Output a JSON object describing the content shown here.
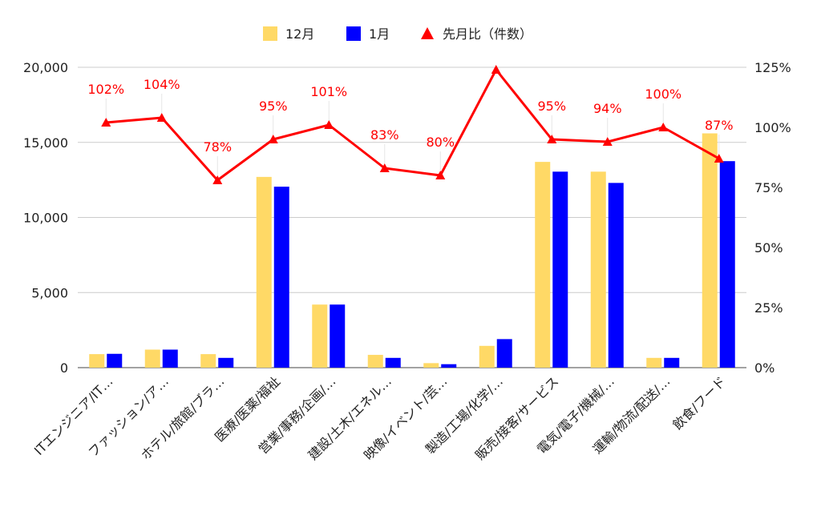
{
  "chart_data": {
    "type": "bar",
    "title": "",
    "categories": [
      "ITエンジニア/IT…",
      "ファッション/ア…",
      "ホテル/旅館/ブラ…",
      "医療/医薬/福祉",
      "営業/事務/企画/…",
      "建設/土木/エネル…",
      "映像/イベント/芸…",
      "製造/工場/化学/…",
      "販売/接客/サービス",
      "電気/電子/機械/…",
      "運輸/物流/配送/…",
      "飲食/フード"
    ],
    "series": [
      {
        "name": "12月",
        "type": "bar",
        "axis": "left",
        "color": "#FFD966",
        "values": [
          900,
          1200,
          900,
          12700,
          4200,
          850,
          300,
          1450,
          13700,
          13050,
          650,
          15600
        ]
      },
      {
        "name": "1月",
        "type": "bar",
        "axis": "left",
        "color": "#0000FF",
        "values": [
          920,
          1200,
          650,
          12050,
          4200,
          650,
          230,
          1900,
          13050,
          12300,
          650,
          13750
        ]
      },
      {
        "name": "先月比（件数）",
        "type": "line",
        "axis": "right",
        "color": "#FF0000",
        "values": [
          102,
          104,
          78,
          95,
          101,
          83,
          80,
          124,
          95,
          94,
          100,
          87
        ]
      }
    ],
    "data_labels": [
      "102%",
      "104%",
      "78%",
      "95%",
      "101%",
      "83%",
      "80%",
      "",
      "95%",
      "94%",
      "100%",
      "87%"
    ],
    "y_left": {
      "min": 0,
      "max": 20000,
      "ticks": [
        "0",
        "5,000",
        "10,000",
        "15,000",
        "20,000"
      ]
    },
    "y_right": {
      "min": 0,
      "max": 125,
      "ticks": [
        "0%",
        "25%",
        "50%",
        "75%",
        "100%",
        "125%"
      ]
    },
    "grid": true,
    "legend_position": "top"
  }
}
